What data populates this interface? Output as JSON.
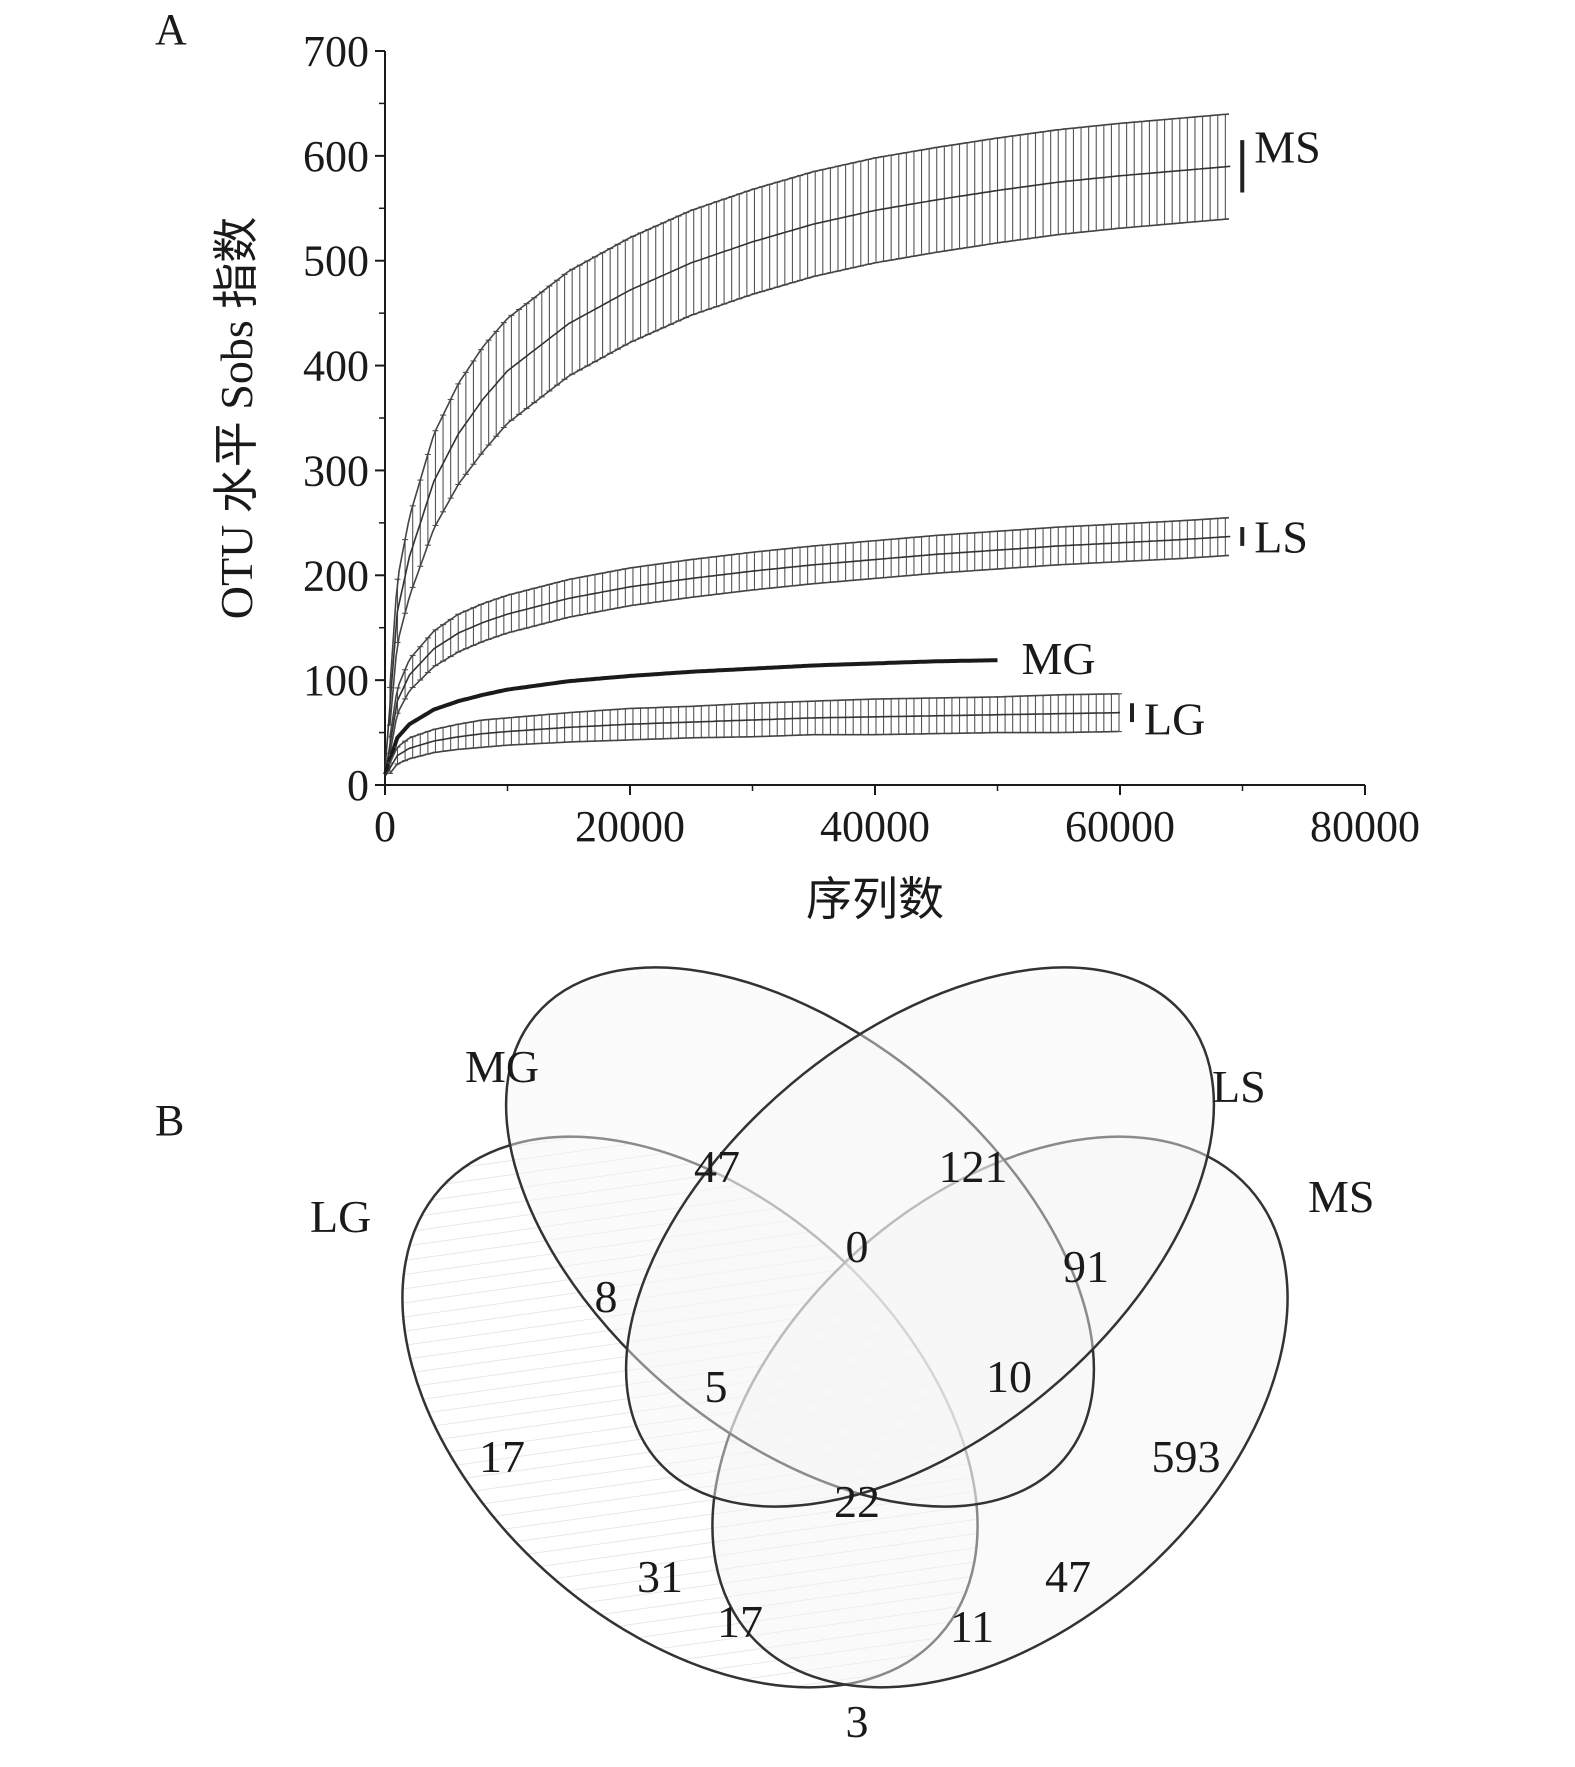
{
  "panel_a": {
    "letter": "A"
  },
  "panel_b": {
    "letter": "B"
  },
  "chart_data": [
    {
      "type": "line",
      "panel": "A",
      "xlabel": "序列数",
      "ylabel": "OTU 水平 Sobs 指数",
      "xlim": [
        0,
        80000
      ],
      "ylim": [
        0,
        700
      ],
      "x_ticks": [
        0,
        20000,
        40000,
        60000,
        80000
      ],
      "y_ticks": [
        0,
        100,
        200,
        300,
        400,
        500,
        600,
        700
      ],
      "grid": false,
      "error_bars": true,
      "series": [
        {
          "name": "MS",
          "x": [
            0,
            1000,
            2000,
            4000,
            6000,
            8000,
            10000,
            15000,
            20000,
            25000,
            30000,
            35000,
            40000,
            45000,
            50000,
            55000,
            60000,
            65000,
            69000
          ],
          "y": [
            15,
            165,
            218,
            290,
            335,
            368,
            395,
            440,
            472,
            498,
            518,
            535,
            548,
            558,
            567,
            575,
            581,
            586,
            590
          ],
          "err": [
            10,
            30,
            38,
            45,
            48,
            50,
            50,
            50,
            50,
            50,
            50,
            50,
            50,
            50,
            50,
            50,
            50,
            50,
            50
          ],
          "color": "#333333"
        },
        {
          "name": "LS",
          "x": [
            0,
            1000,
            2000,
            4000,
            6000,
            8000,
            10000,
            15000,
            20000,
            25000,
            30000,
            35000,
            40000,
            45000,
            50000,
            55000,
            60000,
            65000,
            69000
          ],
          "y": [
            10,
            80,
            105,
            130,
            145,
            155,
            163,
            178,
            189,
            197,
            204,
            210,
            215,
            220,
            224,
            228,
            231,
            234,
            237
          ],
          "err": [
            5,
            12,
            15,
            17,
            18,
            18,
            18,
            18,
            18,
            18,
            18,
            18,
            18,
            18,
            18,
            18,
            18,
            18,
            18
          ],
          "color": "#333333"
        },
        {
          "name": "MG",
          "x": [
            0,
            1000,
            2000,
            4000,
            6000,
            8000,
            10000,
            15000,
            20000,
            25000,
            30000,
            35000,
            40000,
            45000,
            50000
          ],
          "y": [
            10,
            45,
            58,
            72,
            80,
            86,
            91,
            99,
            104,
            108,
            111,
            114,
            116,
            118,
            119
          ],
          "err": [
            0,
            1,
            1,
            1,
            1,
            1,
            1,
            1,
            1,
            1,
            1,
            1,
            1,
            1,
            1
          ],
          "color": "#1a1a1a"
        },
        {
          "name": "LG",
          "x": [
            0,
            1000,
            2000,
            4000,
            6000,
            8000,
            10000,
            15000,
            20000,
            25000,
            30000,
            35000,
            40000,
            45000,
            50000,
            55000,
            60000
          ],
          "y": [
            8,
            28,
            35,
            42,
            46,
            49,
            51,
            55,
            58,
            60,
            62,
            64,
            65,
            66,
            67,
            68,
            69
          ],
          "err": [
            3,
            8,
            10,
            11,
            12,
            13,
            13,
            14,
            15,
            15,
            16,
            16,
            17,
            17,
            17,
            18,
            18
          ],
          "color": "#333333"
        }
      ]
    },
    {
      "type": "venn",
      "panel": "B",
      "sets": [
        "LG",
        "MG",
        "LS",
        "MS"
      ],
      "regions": [
        {
          "sets": [
            "MG"
          ],
          "value": 47
        },
        {
          "sets": [
            "LS"
          ],
          "value": 121
        },
        {
          "sets": [
            "MG",
            "LS"
          ],
          "value": 0
        },
        {
          "sets": [
            "LS",
            "MS"
          ],
          "value": 91
        },
        {
          "sets": [
            "LG",
            "MG"
          ],
          "value": 8
        },
        {
          "sets": [
            "LG",
            "MG",
            "LS"
          ],
          "value": 5
        },
        {
          "sets": [
            "MG",
            "LS",
            "MS"
          ],
          "value": 10
        },
        {
          "sets": [
            "LG"
          ],
          "value": 17
        },
        {
          "sets": [
            "MS"
          ],
          "value": 593
        },
        {
          "sets": [
            "LG",
            "MG",
            "LS",
            "MS"
          ],
          "value": 22
        },
        {
          "sets": [
            "LG",
            "LS"
          ],
          "value": 31
        },
        {
          "sets": [
            "LG",
            "LS",
            "MS"
          ],
          "value": 17
        },
        {
          "sets": [
            "MG",
            "MS"
          ],
          "value": 47
        },
        {
          "sets": [
            "LG",
            "MG",
            "MS"
          ],
          "value": 11
        },
        {
          "sets": [
            "LG",
            "MS"
          ],
          "value": 3
        }
      ]
    }
  ]
}
